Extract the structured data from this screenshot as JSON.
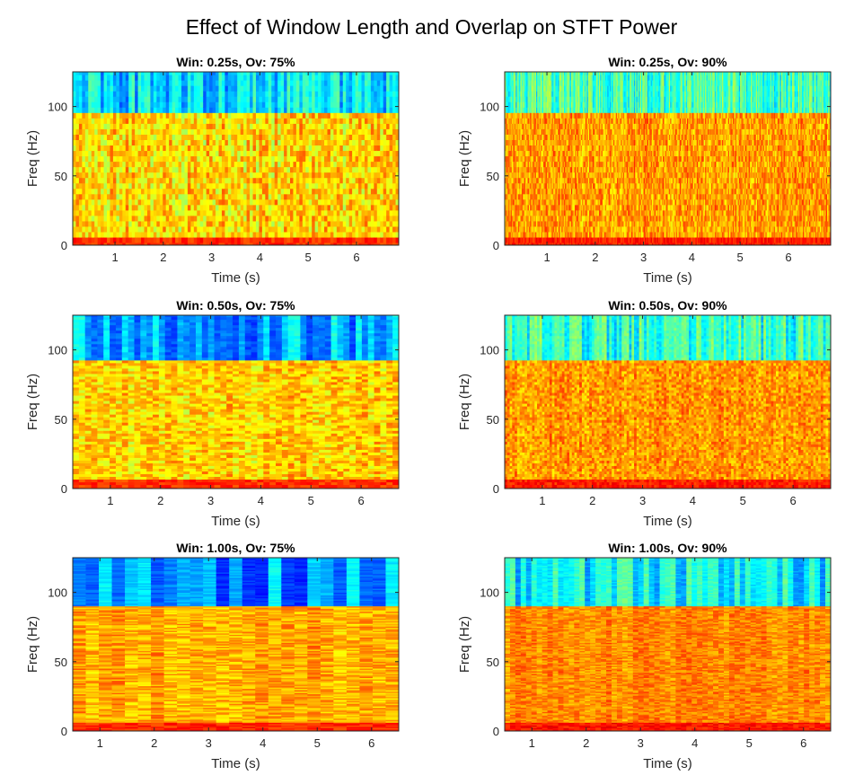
{
  "figure": {
    "title": "Effect of Window Length and Overlap on STFT Power"
  },
  "colormap": {
    "name": "jet",
    "stops": [
      "#00007f",
      "#0000ff",
      "#007fff",
      "#00ffff",
      "#7fff7f",
      "#ffff00",
      "#ff7f00",
      "#ff0000",
      "#7f0000"
    ]
  },
  "chart_data": [
    {
      "type": "heatmap",
      "title": "Win: 0.25s, Ov: 75%",
      "xlabel": "Time (s)",
      "ylabel": "Freq (Hz)",
      "window_s": 0.25,
      "overlap_pct": 75,
      "xlim": [
        0.125,
        6.875
      ],
      "ylim": [
        0,
        125
      ],
      "xticks": [
        1,
        2,
        3,
        4,
        5,
        6
      ],
      "yticks": [
        0,
        50,
        100
      ],
      "n_time_frames": 105,
      "n_freq_bins": 33,
      "band_edge_hz": 94,
      "level_low_band": 0.83,
      "level_mid_band": 0.66,
      "level_high_band": 0.34,
      "variability": 0.08
    },
    {
      "type": "heatmap",
      "title": "Win: 0.25s, Ov: 90%",
      "xlabel": "Time (s)",
      "ylabel": "Freq (Hz)",
      "window_s": 0.25,
      "overlap_pct": 90,
      "xlim": [
        0.125,
        6.875
      ],
      "ylim": [
        0,
        125
      ],
      "xticks": [
        1,
        2,
        3,
        4,
        5,
        6
      ],
      "yticks": [
        0,
        50,
        100
      ],
      "n_time_frames": 270,
      "n_freq_bins": 33,
      "band_edge_hz": 94,
      "level_low_band": 0.85,
      "level_mid_band": 0.72,
      "level_high_band": 0.44,
      "variability": 0.07
    },
    {
      "type": "heatmap",
      "title": "Win: 0.50s, Ov: 75%",
      "xlabel": "Time (s)",
      "ylabel": "Freq (Hz)",
      "window_s": 0.5,
      "overlap_pct": 75,
      "xlim": [
        0.25,
        6.75
      ],
      "ylim": [
        0,
        125
      ],
      "xticks": [
        1,
        2,
        3,
        4,
        5,
        6
      ],
      "yticks": [
        0,
        50,
        100
      ],
      "n_time_frames": 53,
      "n_freq_bins": 65,
      "band_edge_hz": 92,
      "level_low_band": 0.83,
      "level_mid_band": 0.67,
      "level_high_band": 0.3,
      "variability": 0.07
    },
    {
      "type": "heatmap",
      "title": "Win: 0.50s, Ov: 90%",
      "xlabel": "Time (s)",
      "ylabel": "Freq (Hz)",
      "window_s": 0.5,
      "overlap_pct": 90,
      "xlim": [
        0.25,
        6.75
      ],
      "ylim": [
        0,
        125
      ],
      "xticks": [
        1,
        2,
        3,
        4,
        5,
        6
      ],
      "yticks": [
        0,
        50,
        100
      ],
      "n_time_frames": 131,
      "n_freq_bins": 65,
      "band_edge_hz": 92,
      "level_low_band": 0.85,
      "level_mid_band": 0.73,
      "level_high_band": 0.42,
      "variability": 0.06
    },
    {
      "type": "heatmap",
      "title": "Win: 1.00s, Ov: 75%",
      "xlabel": "Time (s)",
      "ylabel": "Freq (Hz)",
      "window_s": 1.0,
      "overlap_pct": 75,
      "xlim": [
        0.5,
        6.5
      ],
      "ylim": [
        0,
        125
      ],
      "xticks": [
        1,
        2,
        3,
        4,
        5,
        6
      ],
      "yticks": [
        0,
        50,
        100
      ],
      "n_time_frames": 25,
      "n_freq_bins": 129,
      "band_edge_hz": 90,
      "level_low_band": 0.84,
      "level_mid_band": 0.71,
      "level_high_band": 0.27,
      "variability": 0.06
    },
    {
      "type": "heatmap",
      "title": "Win: 1.00s, Ov: 90%",
      "xlabel": "Time (s)",
      "ylabel": "Freq (Hz)",
      "window_s": 1.0,
      "overlap_pct": 90,
      "xlim": [
        0.5,
        6.5
      ],
      "ylim": [
        0,
        125
      ],
      "xticks": [
        1,
        2,
        3,
        4,
        5,
        6
      ],
      "yticks": [
        0,
        50,
        100
      ],
      "n_time_frames": 61,
      "n_freq_bins": 129,
      "band_edge_hz": 90,
      "level_low_band": 0.86,
      "level_mid_band": 0.74,
      "level_high_band": 0.37,
      "variability": 0.05
    }
  ]
}
